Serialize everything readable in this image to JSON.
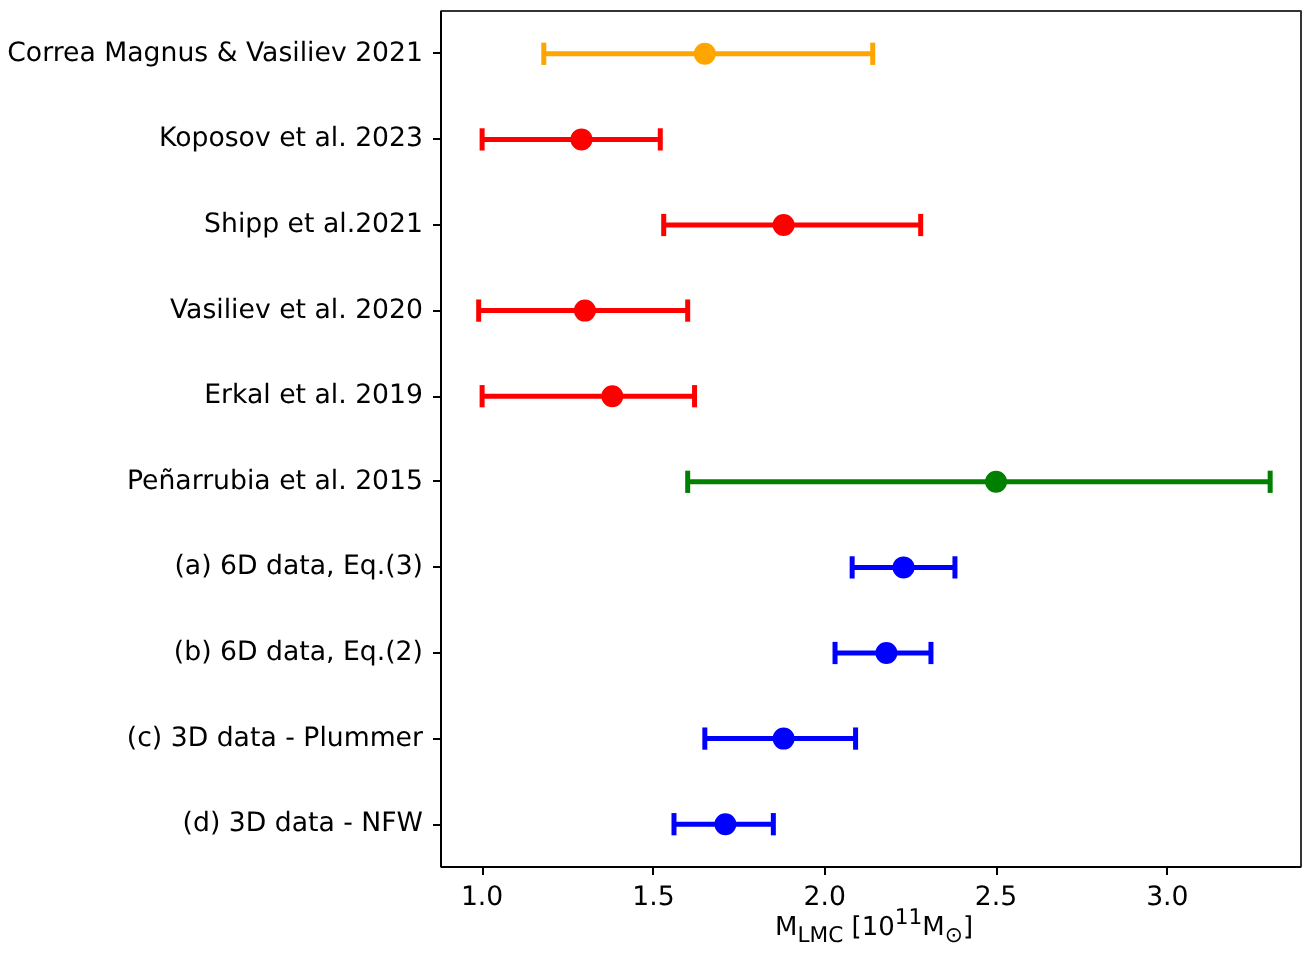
{
  "chart_data": {
    "type": "scatter",
    "orientation": "horizontal",
    "xlabel": "M$_{LMC}$ [10$^{11}$M$_{⊙}$]",
    "categories": [
      "Correa Magnus & Vasiliev 2021",
      "Koposov et al. 2023",
      "Shipp et al.2021",
      "Vasiliev et al. 2020",
      "Erkal et al. 2019",
      "Peñarrubia et al. 2015",
      "(a) 6D data, Eq.(3)",
      "(b) 6D data, Eq.(2)",
      "(c) 3D data - Plummer",
      "(d) 3D data - NFW"
    ],
    "values": [
      1.65,
      1.29,
      1.88,
      1.3,
      1.38,
      2.5,
      2.23,
      2.18,
      1.88,
      1.71
    ],
    "errors": [
      [
        1.18,
        2.14
      ],
      [
        1.0,
        1.52
      ],
      [
        1.53,
        2.28
      ],
      [
        0.99,
        1.6
      ],
      [
        1.0,
        1.62
      ],
      [
        1.6,
        3.3
      ],
      [
        2.08,
        2.38
      ],
      [
        2.03,
        2.31
      ],
      [
        1.65,
        2.09
      ],
      [
        1.56,
        1.85
      ]
    ],
    "colors": [
      "#ffa500",
      "#ff0000",
      "#ff0000",
      "#ff0000",
      "#ff0000",
      "#008000",
      "#0000ff",
      "#0000ff",
      "#0000ff",
      "#0000ff"
    ],
    "marker": "circle",
    "xlim": [
      0.88,
      3.39
    ],
    "xticks": [
      {
        "value": 1,
        "label": "1.0"
      },
      1.5,
      {
        "value": 2,
        "label": "2.0"
      },
      2.5,
      {
        "value": 3,
        "label": "3.0"
      }
    ],
    "grid": false
  }
}
